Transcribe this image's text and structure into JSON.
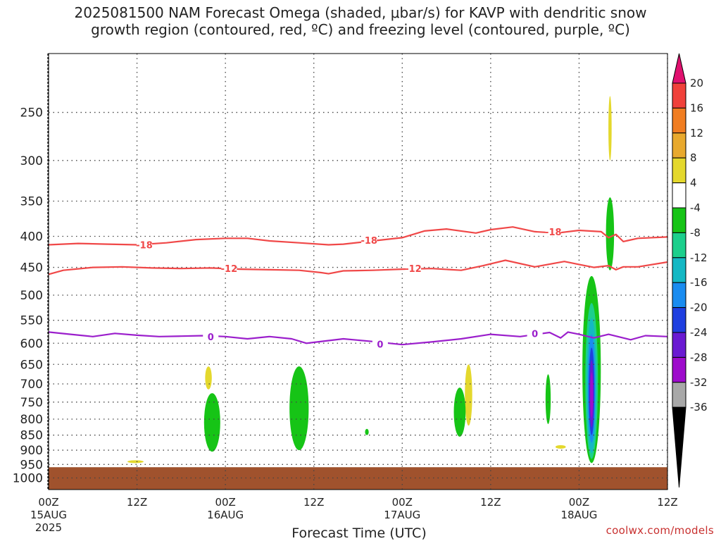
{
  "title": {
    "line1": "2025081500 NAM Forecast Omega (shaded, μbar/s) for KAVP with dendritic snow",
    "line2": "growth region (contoured, red, ºC) and freezing level (contoured, purple, ºC)"
  },
  "credit": "coolwx.com/models",
  "chart_data": {
    "type": "heatmap",
    "title": "2025081500 NAM Forecast Omega (shaded, μbar/s) for KAVP with dendritic snow growth region (contoured, red, ºC) and freezing level (contoured, purple, ºC)",
    "xlabel": "Forecast Time (UTC)",
    "ylabel": "",
    "x_unit": "forecast hour",
    "xlim": [
      0,
      84
    ],
    "ylim": [
      1045,
      200
    ],
    "y_scale": "log-pressure",
    "y_ticks": [
      250,
      300,
      350,
      400,
      450,
      500,
      550,
      600,
      650,
      700,
      750,
      800,
      850,
      900,
      950,
      1000
    ],
    "x_ticks": [
      {
        "hour": 0,
        "lines": [
          "00Z",
          "15AUG",
          "2025"
        ]
      },
      {
        "hour": 12,
        "lines": [
          "12Z"
        ]
      },
      {
        "hour": 24,
        "lines": [
          "00Z",
          "16AUG"
        ]
      },
      {
        "hour": 36,
        "lines": [
          "12Z"
        ]
      },
      {
        "hour": 48,
        "lines": [
          "00Z",
          "17AUG"
        ]
      },
      {
        "hour": 60,
        "lines": [
          "12Z"
        ]
      },
      {
        "hour": 72,
        "lines": [
          "00Z",
          "18AUG"
        ]
      },
      {
        "hour": 84,
        "lines": [
          "12Z"
        ]
      }
    ],
    "grid": true,
    "colorbar": {
      "labels": [
        20,
        16,
        12,
        8,
        4,
        -4,
        -8,
        -12,
        -16,
        -20,
        -24,
        -28,
        -32,
        -36
      ],
      "colors": [
        "#e0116f",
        "#f0413a",
        "#f07d21",
        "#e8a92e",
        "#e4d82d",
        "#ffffff",
        "#16c416",
        "#1ccf8c",
        "#14b8c4",
        "#1a8cf0",
        "#1f3fe0",
        "#6a1ad2",
        "#9e0ccc",
        "#a8a8a8",
        "#000000"
      ]
    },
    "surface": {
      "color": "#a0522d",
      "top_pressure": 960
    },
    "contours": [
      {
        "name": "-18",
        "color": "#f04848",
        "x": [
          0,
          4,
          8,
          12,
          16,
          20,
          24,
          27,
          30,
          34,
          38,
          40,
          44,
          48,
          51,
          54,
          58,
          60,
          63,
          66,
          69,
          72,
          75,
          76,
          77,
          78,
          80,
          84
        ],
        "y": [
          413,
          411,
          412,
          413,
          410,
          405,
          403,
          403,
          407,
          410,
          413,
          412,
          407,
          402,
          392,
          389,
          395,
          390,
          386,
          393,
          395,
          391,
          393,
          402,
          397,
          408,
          403,
          401
        ],
        "labels": [
          {
            "x": 13,
            "y": 413
          },
          {
            "x": 43.5,
            "y": 406
          },
          {
            "x": 68.5,
            "y": 393
          }
        ]
      },
      {
        "name": "-12",
        "color": "#f04848",
        "x": [
          0,
          2,
          6,
          10,
          14,
          18,
          22,
          26,
          30,
          34,
          37,
          38,
          40,
          44,
          48,
          52,
          56,
          59,
          62,
          66,
          70,
          72,
          74,
          76,
          77,
          78,
          80,
          84
        ],
        "y": [
          462,
          455,
          450,
          449,
          451,
          452,
          451,
          453,
          454,
          455,
          459,
          461,
          456,
          455,
          453,
          452,
          455,
          447,
          438,
          449,
          440,
          445,
          450,
          447,
          454,
          449,
          449,
          441
        ],
        "labels": [
          {
            "x": 24.5,
            "y": 452
          },
          {
            "x": 49.5,
            "y": 452
          }
        ]
      },
      {
        "name": "0",
        "color": "#9b1fcc",
        "x": [
          0,
          3,
          6,
          9,
          12,
          15,
          18,
          21,
          24,
          27,
          30,
          33,
          35,
          36,
          40,
          44,
          48,
          52,
          56,
          60,
          64,
          68,
          69.5,
          70.5,
          72,
          74,
          76,
          79,
          81,
          84
        ],
        "y": [
          575,
          580,
          585,
          578,
          582,
          585,
          584,
          583,
          585,
          590,
          585,
          590,
          600,
          598,
          590,
          596,
          603,
          597,
          590,
          580,
          585,
          576,
          588,
          575,
          580,
          588,
          580,
          592,
          583,
          585
        ],
        "labels": [
          {
            "x": 22,
            "y": 585
          },
          {
            "x": 45,
            "y": 602
          },
          {
            "x": 66,
            "y": 578
          }
        ]
      }
    ],
    "shaded_regions": [
      {
        "value": 4,
        "color": "#e4d82d",
        "hour": 11.8,
        "p_top": 935,
        "p_bot": 945,
        "halfwidth": 1.1
      },
      {
        "value": 4,
        "color": "#e4d82d",
        "hour": 21.7,
        "p_top": 655,
        "p_bot": 715,
        "halfwidth": 0.45
      },
      {
        "value": 4,
        "color": "#e4d82d",
        "hour": 57.0,
        "p_top": 650,
        "p_bot": 820,
        "halfwidth": 0.5
      },
      {
        "value": 4,
        "color": "#e4d82d",
        "hour": 69.5,
        "p_top": 883,
        "p_bot": 895,
        "halfwidth": 0.7
      },
      {
        "value": 4,
        "color": "#e4d82d",
        "hour": 76.2,
        "p_top": 235,
        "p_bot": 300,
        "halfwidth": 0.22
      },
      {
        "value": -4,
        "color": "#16c416",
        "hour": 22.2,
        "p_top": 725,
        "p_bot": 905,
        "halfwidth": 1.1
      },
      {
        "value": -4,
        "color": "#16c416",
        "hour": 34.0,
        "p_top": 655,
        "p_bot": 900,
        "halfwidth": 1.3
      },
      {
        "value": -4,
        "color": "#16c416",
        "hour": 43.2,
        "p_top": 830,
        "p_bot": 850,
        "halfwidth": 0.25
      },
      {
        "value": -4,
        "color": "#16c416",
        "hour": 55.8,
        "p_top": 710,
        "p_bot": 855,
        "halfwidth": 0.8
      },
      {
        "value": -4,
        "color": "#16c416",
        "hour": 67.8,
        "p_top": 675,
        "p_bot": 815,
        "halfwidth": 0.35
      },
      {
        "value": -4,
        "color": "#16c416",
        "hour": 76.2,
        "p_top": 345,
        "p_bot": 455,
        "halfwidth": 0.55
      },
      {
        "value": -4,
        "color": "#16c416",
        "hour": 73.7,
        "p_top": 465,
        "p_bot": 945,
        "halfwidth": 1.25
      },
      {
        "value": -8,
        "color": "#1ccf8c",
        "hour": 73.7,
        "p_top": 515,
        "p_bot": 930,
        "halfwidth": 0.85
      },
      {
        "value": -12,
        "color": "#14b8c4",
        "hour": 73.7,
        "p_top": 545,
        "p_bot": 910,
        "halfwidth": 0.65
      },
      {
        "value": -16,
        "color": "#1a8cf0",
        "hour": 73.7,
        "p_top": 580,
        "p_bot": 875,
        "halfwidth": 0.5
      },
      {
        "value": -20,
        "color": "#1f3fe0",
        "hour": 73.7,
        "p_top": 610,
        "p_bot": 850,
        "halfwidth": 0.38
      },
      {
        "value": -24,
        "color": "#6a1ad2",
        "hour": 73.7,
        "p_top": 640,
        "p_bot": 825,
        "halfwidth": 0.28
      },
      {
        "value": -28,
        "color": "#9e0ccc",
        "hour": 73.7,
        "p_top": 670,
        "p_bot": 795,
        "halfwidth": 0.18
      }
    ]
  }
}
